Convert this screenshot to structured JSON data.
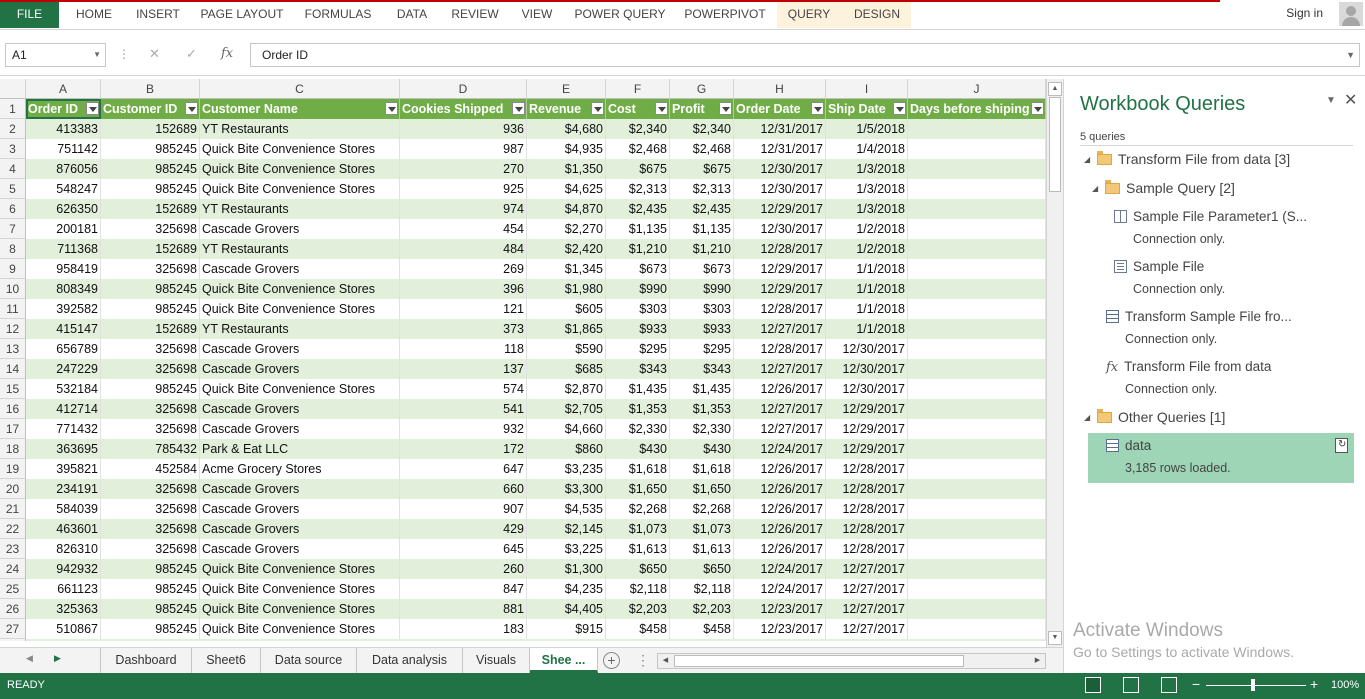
{
  "ribbon": {
    "tabs": [
      "FILE",
      "HOME",
      "INSERT",
      "PAGE LAYOUT",
      "FORMULAS",
      "DATA",
      "REVIEW",
      "VIEW",
      "POWER QUERY",
      "POWERPIVOT",
      "QUERY",
      "DESIGN"
    ],
    "sign_in": "Sign in"
  },
  "formula_bar": {
    "name_box": "A1",
    "fx": "fx",
    "cancel": "✕",
    "confirm": "✓",
    "formula": "Order ID"
  },
  "columns": [
    "A",
    "B",
    "C",
    "D",
    "E",
    "F",
    "G",
    "H",
    "I",
    "J"
  ],
  "table": {
    "headers": [
      "Order ID",
      "Customer ID",
      "Customer Name",
      "Cookies Shipped",
      "Revenue",
      "Cost",
      "Profit",
      "Order Date",
      "Ship Date",
      "Days before shiping"
    ],
    "rows": [
      [
        "413383",
        "152689",
        "YT Restaurants",
        "936",
        "$4,680",
        "$2,340",
        "$2,340",
        "12/31/2017",
        "1/5/2018",
        ""
      ],
      [
        "751142",
        "985245",
        "Quick Bite Convenience Stores",
        "987",
        "$4,935",
        "$2,468",
        "$2,468",
        "12/31/2017",
        "1/4/2018",
        ""
      ],
      [
        "876056",
        "985245",
        "Quick Bite Convenience Stores",
        "270",
        "$1,350",
        "$675",
        "$675",
        "12/30/2017",
        "1/3/2018",
        ""
      ],
      [
        "548247",
        "985245",
        "Quick Bite Convenience Stores",
        "925",
        "$4,625",
        "$2,313",
        "$2,313",
        "12/30/2017",
        "1/3/2018",
        ""
      ],
      [
        "626350",
        "152689",
        "YT Restaurants",
        "974",
        "$4,870",
        "$2,435",
        "$2,435",
        "12/29/2017",
        "1/3/2018",
        ""
      ],
      [
        "200181",
        "325698",
        "Cascade Grovers",
        "454",
        "$2,270",
        "$1,135",
        "$1,135",
        "12/30/2017",
        "1/2/2018",
        ""
      ],
      [
        "711368",
        "152689",
        "YT Restaurants",
        "484",
        "$2,420",
        "$1,210",
        "$1,210",
        "12/28/2017",
        "1/2/2018",
        ""
      ],
      [
        "958419",
        "325698",
        "Cascade Grovers",
        "269",
        "$1,345",
        "$673",
        "$673",
        "12/29/2017",
        "1/1/2018",
        ""
      ],
      [
        "808349",
        "985245",
        "Quick Bite Convenience Stores",
        "396",
        "$1,980",
        "$990",
        "$990",
        "12/29/2017",
        "1/1/2018",
        ""
      ],
      [
        "392582",
        "985245",
        "Quick Bite Convenience Stores",
        "121",
        "$605",
        "$303",
        "$303",
        "12/28/2017",
        "1/1/2018",
        ""
      ],
      [
        "415147",
        "152689",
        "YT Restaurants",
        "373",
        "$1,865",
        "$933",
        "$933",
        "12/27/2017",
        "1/1/2018",
        ""
      ],
      [
        "656789",
        "325698",
        "Cascade Grovers",
        "118",
        "$590",
        "$295",
        "$295",
        "12/28/2017",
        "12/30/2017",
        ""
      ],
      [
        "247229",
        "325698",
        "Cascade Grovers",
        "137",
        "$685",
        "$343",
        "$343",
        "12/27/2017",
        "12/30/2017",
        ""
      ],
      [
        "532184",
        "985245",
        "Quick Bite Convenience Stores",
        "574",
        "$2,870",
        "$1,435",
        "$1,435",
        "12/26/2017",
        "12/30/2017",
        ""
      ],
      [
        "412714",
        "325698",
        "Cascade Grovers",
        "541",
        "$2,705",
        "$1,353",
        "$1,353",
        "12/27/2017",
        "12/29/2017",
        ""
      ],
      [
        "771432",
        "325698",
        "Cascade Grovers",
        "932",
        "$4,660",
        "$2,330",
        "$2,330",
        "12/27/2017",
        "12/29/2017",
        ""
      ],
      [
        "363695",
        "785432",
        "Park & Eat LLC",
        "172",
        "$860",
        "$430",
        "$430",
        "12/24/2017",
        "12/29/2017",
        ""
      ],
      [
        "395821",
        "452584",
        "Acme Grocery Stores",
        "647",
        "$3,235",
        "$1,618",
        "$1,618",
        "12/26/2017",
        "12/28/2017",
        ""
      ],
      [
        "234191",
        "325698",
        "Cascade Grovers",
        "660",
        "$3,300",
        "$1,650",
        "$1,650",
        "12/26/2017",
        "12/28/2017",
        ""
      ],
      [
        "584039",
        "325698",
        "Cascade Grovers",
        "907",
        "$4,535",
        "$2,268",
        "$2,268",
        "12/26/2017",
        "12/28/2017",
        ""
      ],
      [
        "463601",
        "325698",
        "Cascade Grovers",
        "429",
        "$2,145",
        "$1,073",
        "$1,073",
        "12/26/2017",
        "12/28/2017",
        ""
      ],
      [
        "826310",
        "325698",
        "Cascade Grovers",
        "645",
        "$3,225",
        "$1,613",
        "$1,613",
        "12/26/2017",
        "12/28/2017",
        ""
      ],
      [
        "942932",
        "985245",
        "Quick Bite Convenience Stores",
        "260",
        "$1,300",
        "$650",
        "$650",
        "12/24/2017",
        "12/27/2017",
        ""
      ],
      [
        "661123",
        "985245",
        "Quick Bite Convenience Stores",
        "847",
        "$4,235",
        "$2,118",
        "$2,118",
        "12/24/2017",
        "12/27/2017",
        ""
      ],
      [
        "325363",
        "985245",
        "Quick Bite Convenience Stores",
        "881",
        "$4,405",
        "$2,203",
        "$2,203",
        "12/23/2017",
        "12/27/2017",
        ""
      ],
      [
        "510867",
        "985245",
        "Quick Bite Convenience Stores",
        "183",
        "$915",
        "$458",
        "$458",
        "12/23/2017",
        "12/27/2017",
        ""
      ]
    ]
  },
  "sheet_tabs": {
    "items": [
      "Dashboard",
      "Sheet6",
      "Data source",
      "Data analysis",
      "Visuals",
      "Shee ..."
    ],
    "active_index": 5
  },
  "status": {
    "ready": "READY",
    "zoom": "100%",
    "zoom_minus": "−",
    "zoom_plus": "+"
  },
  "queries_pane": {
    "title": "Workbook Queries",
    "count": "5 queries",
    "groups": {
      "transform": "Transform File from data [3]",
      "sample": "Sample Query [2]",
      "other": "Other Queries [1]"
    },
    "items": {
      "param_name": "Sample File Parameter1 (S...",
      "param_status": "Connection only.",
      "samplefile_name": "Sample File",
      "samplefile_status": "Connection only.",
      "transform_sample_name": "Transform Sample File fro...",
      "transform_sample_status": "Connection only.",
      "transform_fn_name": "Transform File from data",
      "transform_fn_status": "Connection only.",
      "data_name": "data",
      "data_status": "3,185 rows loaded."
    }
  },
  "watermark": {
    "line1": "Activate Windows",
    "line2": "Go to Settings to activate Windows."
  },
  "colors": {
    "excel_green": "#217346",
    "table_header": "#70ad47",
    "band": "#e2efda",
    "selected_query": "#9fd5b7"
  }
}
